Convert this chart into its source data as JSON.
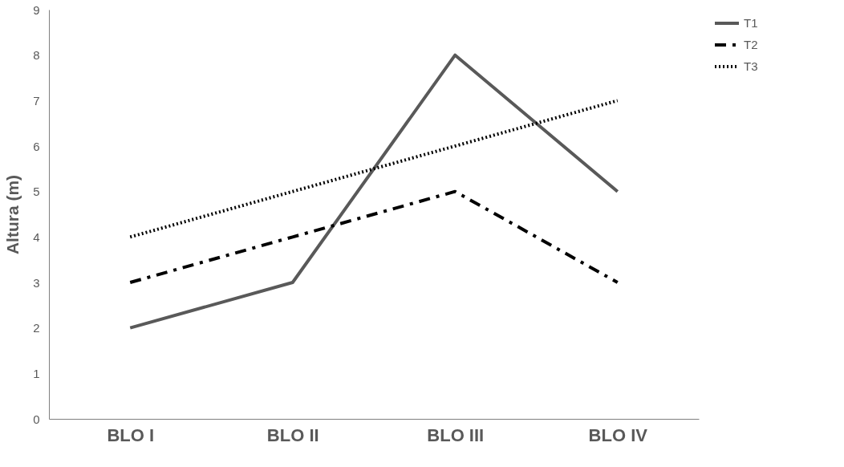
{
  "chart_data": {
    "type": "line",
    "ylabel": "Altura (m)",
    "categories": [
      "BLO I",
      "BLO II",
      "BLO III",
      "BLO IV"
    ],
    "series": [
      {
        "name": "T1",
        "color": "#595959",
        "line_style": "solid",
        "values": [
          2,
          3,
          8,
          5
        ]
      },
      {
        "name": "T2",
        "color": "#000000",
        "line_style": "dashdot",
        "values": [
          3,
          4,
          5,
          3
        ]
      },
      {
        "name": "T3",
        "color": "#000000",
        "line_style": "dotted",
        "values": [
          4,
          5,
          6,
          7
        ]
      }
    ],
    "ylim": [
      0,
      9
    ],
    "yticks": [
      0,
      1,
      2,
      3,
      4,
      5,
      6,
      7,
      8,
      9
    ],
    "grid": false,
    "legend": "right",
    "marker": "none"
  }
}
